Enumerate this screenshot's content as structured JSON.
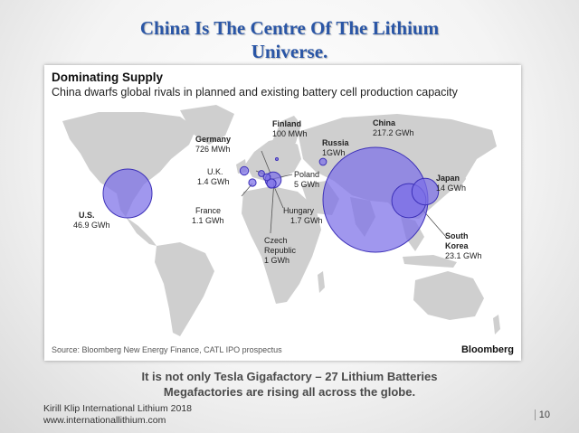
{
  "slide": {
    "title_line1": "China Is The Centre Of The Lithium",
    "title_line2": "Universe.",
    "caption_line1": "It is not only Tesla Gigafactory – 27 Lithium Batteries",
    "caption_line2": "Megafactories are rising all across the globe.",
    "footer_line1": "Kirill Klip International Lithium 2018",
    "footer_line2": "www.internationallithium.com",
    "page_number": "10"
  },
  "chart_data": {
    "type": "bubble-map",
    "title": "Dominating Supply",
    "subtitle": "China dwarfs global rivals in planned and existing battery cell production capacity",
    "source": "Source: Bloomberg New Energy Finance, CATL IPO prospectus",
    "brand": "Bloomberg",
    "unit": "GWh",
    "bubble_color": "#7b6fe8",
    "points": [
      {
        "country": "China",
        "value_label": "217.2 GWh",
        "value": 217.2
      },
      {
        "country": "U.S.",
        "value_label": "46.9 GWh",
        "value": 46.9
      },
      {
        "country": "South Korea",
        "value_label": "23.1 GWh",
        "value": 23.1
      },
      {
        "country": "Japan",
        "value_label": "14 GWh",
        "value": 14
      },
      {
        "country": "Poland",
        "value_label": "5 GWh",
        "value": 5
      },
      {
        "country": "Hungary",
        "value_label": "1.7 GWh",
        "value": 1.7
      },
      {
        "country": "U.K.",
        "value_label": "1.4 GWh",
        "value": 1.4
      },
      {
        "country": "France",
        "value_label": "1.1 GWh",
        "value": 1.1
      },
      {
        "country": "Russia",
        "value_label": "1GWh",
        "value": 1
      },
      {
        "country": "Czech Republic",
        "value_label": "1 GWh",
        "value": 1
      },
      {
        "country": "Germany",
        "value_label": "726 MWh",
        "value": 0.726
      },
      {
        "country": "Finland",
        "value_label": "100 MWh",
        "value": 0.1
      }
    ]
  }
}
